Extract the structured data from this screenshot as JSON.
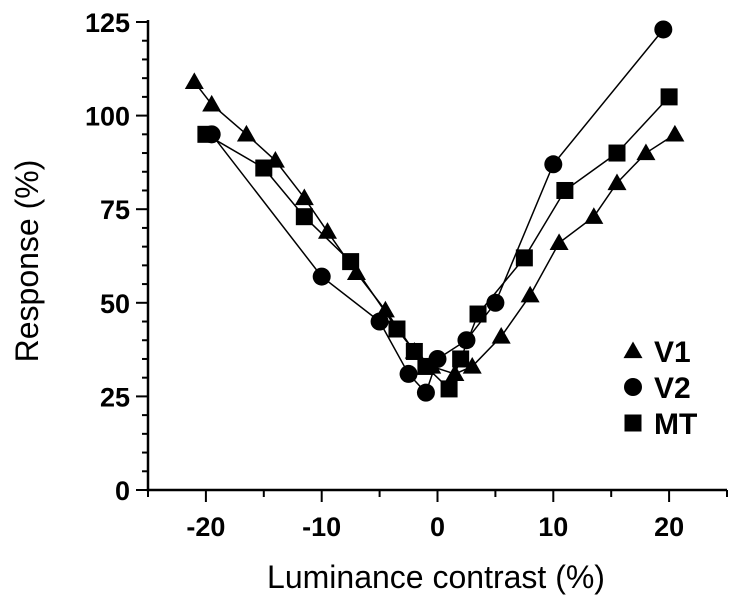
{
  "chart_data": {
    "type": "scatter",
    "title": "",
    "xlabel": "Luminance contrast (%)",
    "ylabel": "Response (%)",
    "xlim": [
      -25,
      25
    ],
    "ylim": [
      0,
      125
    ],
    "xticks": [
      -20,
      -10,
      0,
      10,
      20
    ],
    "yticks": [
      0,
      25,
      50,
      75,
      100,
      125
    ],
    "grid": false,
    "legend_position": "bottom-right",
    "series": [
      {
        "name": "V1",
        "marker": "triangle",
        "color": "#000000",
        "x": [
          -21,
          -19.5,
          -16.5,
          -14,
          -11.5,
          -9.5,
          -7,
          -4.5,
          -2,
          -0.5,
          1.5,
          3,
          5.5,
          8,
          10.5,
          13.5,
          15.5,
          18,
          20.5
        ],
        "y": [
          109,
          103,
          95,
          88,
          78,
          69,
          58,
          48,
          37,
          33,
          31,
          33,
          41,
          52,
          66,
          73,
          82,
          90,
          95
        ]
      },
      {
        "name": "V2",
        "marker": "circle",
        "color": "#000000",
        "x": [
          -19.5,
          -10,
          -5,
          -2.5,
          -1,
          0,
          2.5,
          5,
          10,
          19.5
        ],
        "y": [
          95,
          57,
          45,
          31,
          26,
          35,
          40,
          50,
          87,
          123
        ]
      },
      {
        "name": "MT",
        "marker": "square",
        "color": "#000000",
        "x": [
          -20,
          -15,
          -11.5,
          -7.5,
          -3.5,
          -2,
          -1,
          1,
          2,
          3.5,
          7.5,
          11,
          15.5,
          20
        ],
        "y": [
          95,
          86,
          73,
          61,
          43,
          37,
          33,
          27,
          35,
          47,
          62,
          80,
          90,
          105
        ]
      }
    ]
  }
}
